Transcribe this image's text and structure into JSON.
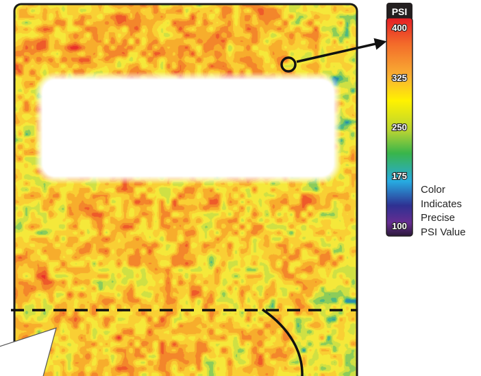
{
  "pressure_map": {
    "heat_levels": [
      {
        "min": 0.0,
        "max": 0.12,
        "color": "#e9302a"
      },
      {
        "min": 0.12,
        "max": 0.22,
        "color": "#ee5a2a"
      },
      {
        "min": 0.22,
        "max": 0.34,
        "color": "#f3862b"
      },
      {
        "min": 0.34,
        "max": 0.46,
        "color": "#f7ad2c"
      },
      {
        "min": 0.46,
        "max": 0.58,
        "color": "#f9cf34"
      },
      {
        "min": 0.58,
        "max": 0.7,
        "color": "#f5e83a"
      },
      {
        "min": 0.7,
        "max": 0.8,
        "color": "#cfe044"
      },
      {
        "min": 0.8,
        "max": 0.88,
        "color": "#8ccc5a"
      },
      {
        "min": 0.88,
        "max": 0.94,
        "color": "#4db782"
      },
      {
        "min": 0.94,
        "max": 1.0,
        "color": "#2a8fa8"
      }
    ]
  },
  "color_scale": {
    "title": "PSI",
    "ticks": [
      "400",
      "325",
      "250",
      "175",
      "100"
    ],
    "gradient_stops": [
      {
        "offset": 0.0,
        "color": "#e41e26"
      },
      {
        "offset": 0.12,
        "color": "#f36b2a"
      },
      {
        "offset": 0.27,
        "color": "#f9b233"
      },
      {
        "offset": 0.38,
        "color": "#fff200"
      },
      {
        "offset": 0.52,
        "color": "#b5d334"
      },
      {
        "offset": 0.62,
        "color": "#39b54a"
      },
      {
        "offset": 0.75,
        "color": "#27aae1"
      },
      {
        "offset": 0.86,
        "color": "#2e3192"
      },
      {
        "offset": 0.94,
        "color": "#662d91"
      },
      {
        "offset": 1.0,
        "color": "#2b1a3a"
      }
    ]
  },
  "legend_caption": [
    "Color",
    "Indicates",
    "Precise",
    "PSI Value"
  ],
  "colors": {
    "outline": "#1a1a1a",
    "marker_ring": "#111111",
    "callout_fill": "#ffffff",
    "callout_stroke": "#555555"
  }
}
